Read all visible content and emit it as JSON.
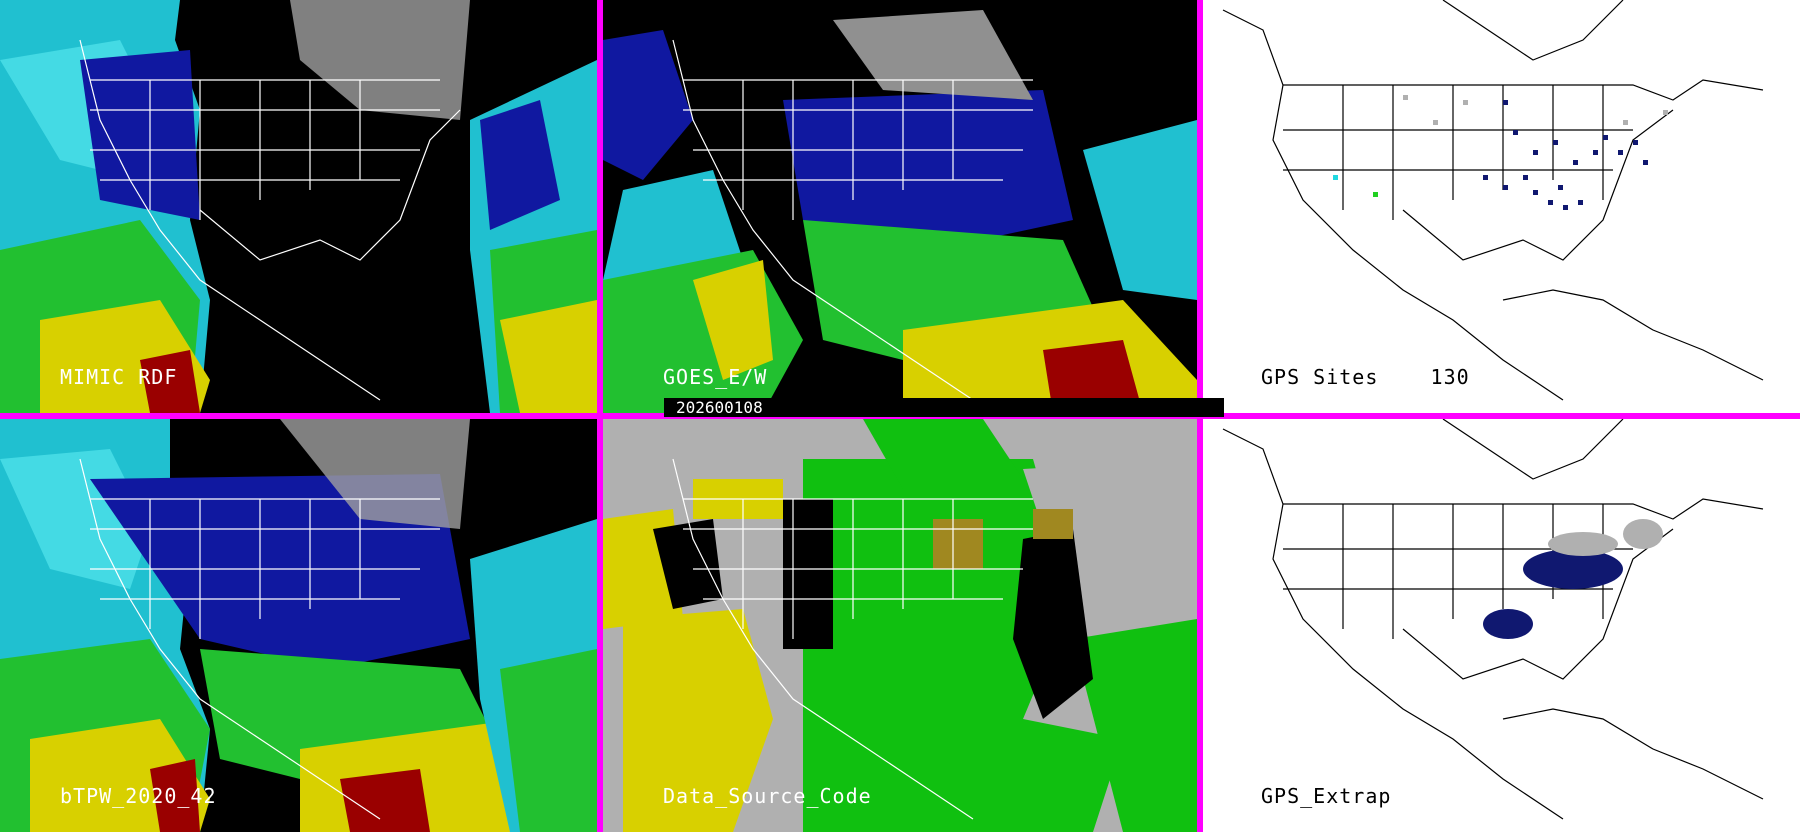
{
  "panels": [
    {
      "id": "mimic",
      "label": "MIMIC RDF"
    },
    {
      "id": "goes",
      "label": "GOES_E/W"
    },
    {
      "id": "gps",
      "label": "GPS Sites    130"
    },
    {
      "id": "btpw",
      "label": "bTPW_2020_42"
    },
    {
      "id": "dsc",
      "label": "Data_Source_Code"
    },
    {
      "id": "gpsx",
      "label": "GPS_Extrap"
    }
  ],
  "date_bar": "202600108",
  "colors": {
    "divider": "#ff00ff",
    "ocean_dry": "#000000",
    "water_vapor_blue": "#1520b0",
    "water_vapor_cyan": "#20d8e0",
    "water_vapor_green": "#20d020",
    "water_vapor_yellow": "#e0e000",
    "water_vapor_red": "#a00000",
    "gps_site_dark": "#101870",
    "gps_site_gray": "#b0b0b0"
  }
}
